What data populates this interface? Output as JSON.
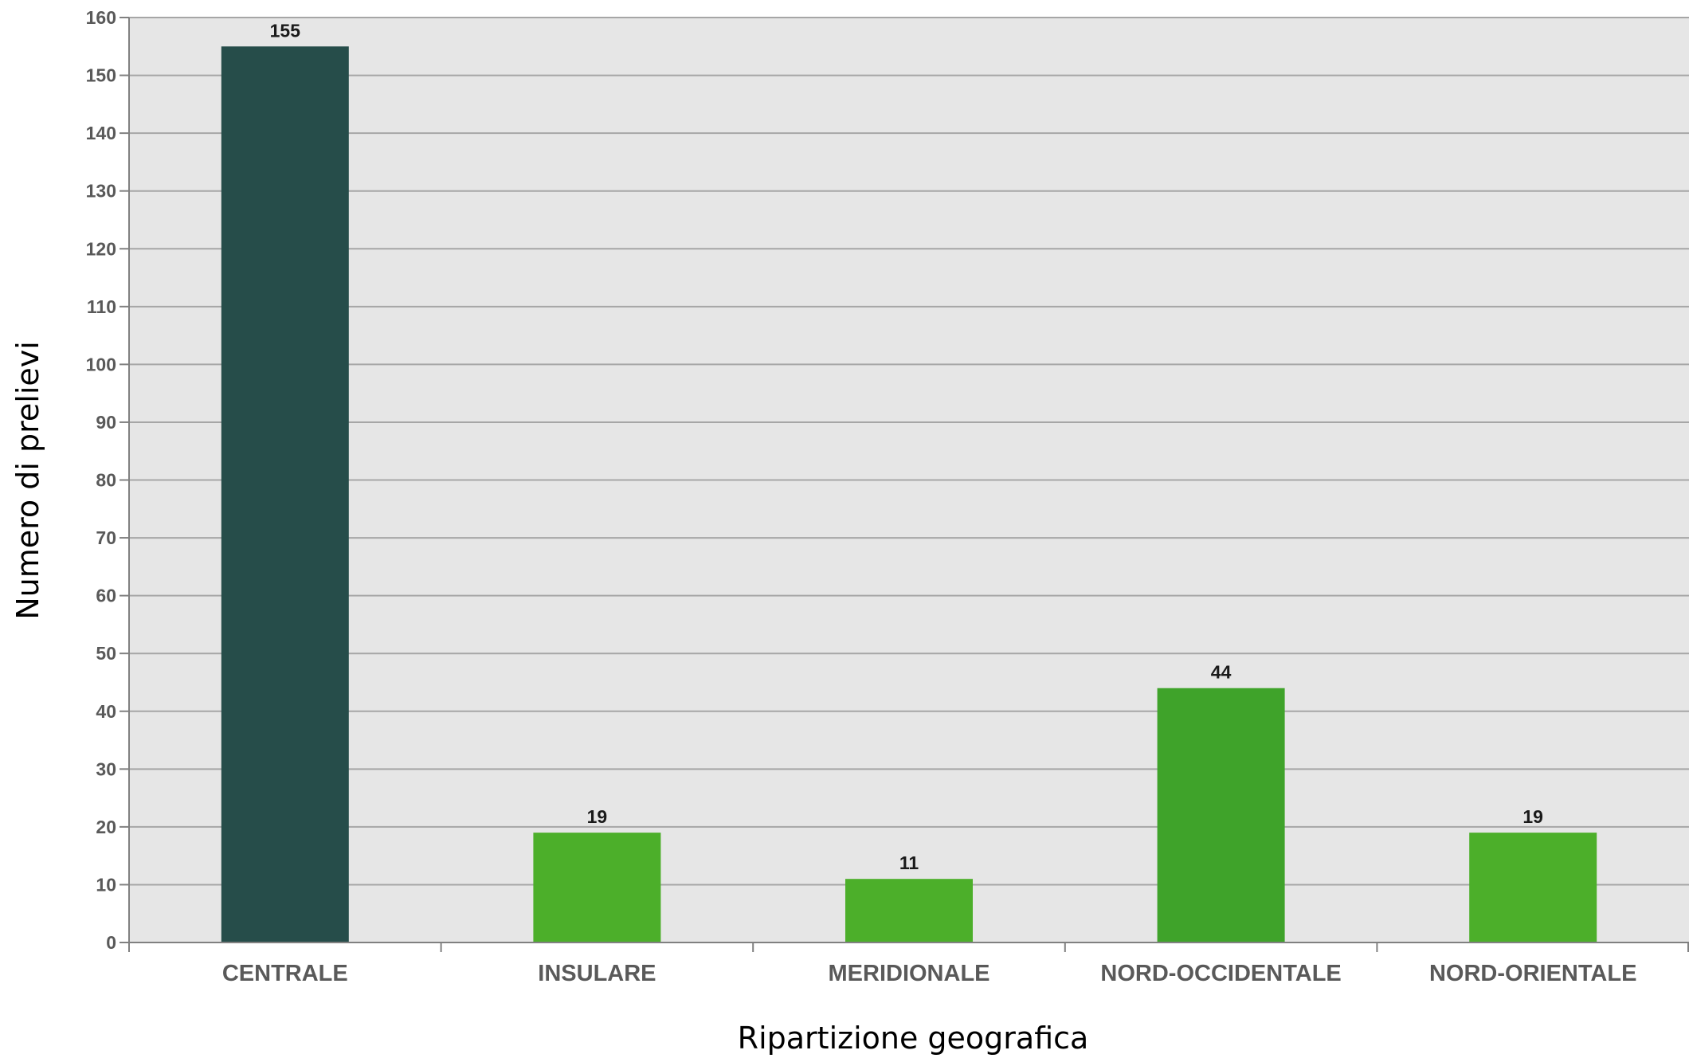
{
  "chart_data": {
    "type": "bar",
    "title": "",
    "xlabel": "Ripartizione geografica",
    "ylabel": "Numero di prelievi",
    "categories": [
      "CENTRALE",
      "INSULARE",
      "MERIDIONALE",
      "NORD-OCCIDENTALE",
      "NORD-ORIENTALE"
    ],
    "values": [
      155,
      19,
      11,
      44,
      19
    ],
    "ylim": [
      0,
      160
    ],
    "yticks": [
      0,
      10,
      20,
      30,
      40,
      50,
      60,
      70,
      80,
      90,
      100,
      110,
      120,
      130,
      140,
      150,
      160
    ],
    "data_labels": [
      "155",
      "19",
      "11",
      "44",
      "19"
    ],
    "bar_colors": [
      "#264d4a",
      "#4caf2a",
      "#4caf2a",
      "#3fa32a",
      "#4caf2a"
    ],
    "plot_background": "#e6e6e6",
    "gridlines": true,
    "legend": "none"
  }
}
